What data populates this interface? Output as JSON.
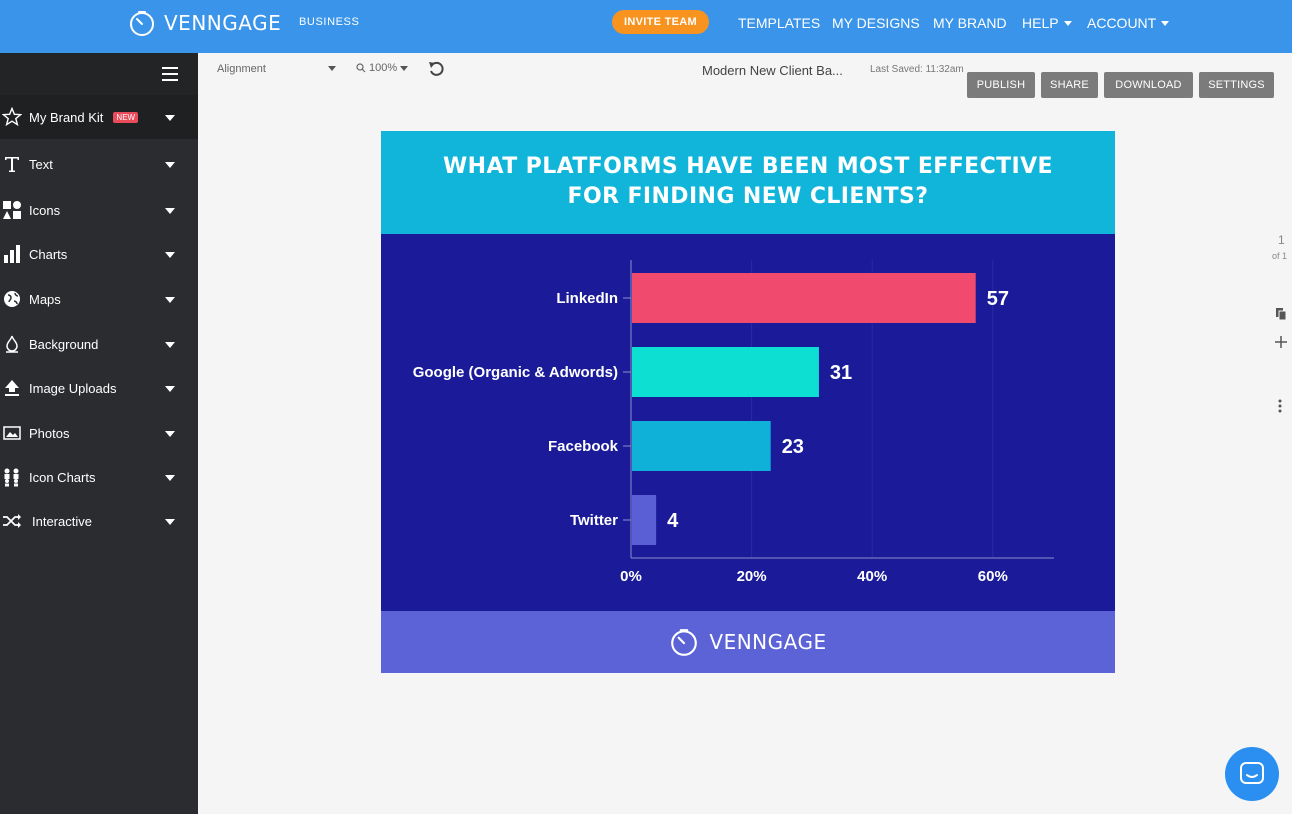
{
  "header": {
    "logo_text": "VENNGAGE",
    "plan": "BUSINESS",
    "invite_label": "INVITE TEAM",
    "nav": [
      {
        "label": "TEMPLATES"
      },
      {
        "label": "MY DESIGNS"
      },
      {
        "label": "MY BRAND"
      },
      {
        "label": "HELP"
      },
      {
        "label": "ACCOUNT"
      }
    ]
  },
  "sidebar": {
    "items": [
      {
        "label": "My Brand Kit",
        "badge": "NEW",
        "icon": "star-icon"
      },
      {
        "label": "Text",
        "icon": "text-icon"
      },
      {
        "label": "Icons",
        "icon": "shapes-icon"
      },
      {
        "label": "Charts",
        "icon": "bar-chart-icon"
      },
      {
        "label": "Maps",
        "icon": "globe-icon"
      },
      {
        "label": "Background",
        "icon": "paint-bucket-icon"
      },
      {
        "label": "Image Uploads",
        "icon": "upload-icon"
      },
      {
        "label": "Photos",
        "icon": "photo-icon"
      },
      {
        "label": "Icon Charts",
        "icon": "people-icon"
      },
      {
        "label": "Interactive",
        "icon": "shuffle-icon"
      }
    ]
  },
  "toolbar": {
    "alignment": "Alignment",
    "zoom": "100%",
    "doc_title": "Modern New Client Ba...",
    "last_saved": "Last Saved: 11:32am",
    "buttons": [
      "PUBLISH",
      "SHARE",
      "DOWNLOAD",
      "SETTINGS"
    ]
  },
  "canvas": {
    "title_line1": "WHAT PLATFORMS HAVE BEEN MOST EFFECTIVE",
    "title_line2": "FOR FINDING NEW CLIENTS?",
    "footer_logo": "VENNGAGE"
  },
  "chart_data": {
    "type": "bar",
    "orientation": "horizontal",
    "categories": [
      "LinkedIn",
      "Google (Organic & Adwords)",
      "Facebook",
      "Twitter"
    ],
    "values": [
      57,
      31,
      23,
      4
    ],
    "data_labels": [
      "57",
      "31",
      "23",
      "4"
    ],
    "bar_colors": [
      "#f04b6e",
      "#0ddfd2",
      "#10b1d8",
      "#5a5fd6"
    ],
    "xlim": [
      0,
      70
    ],
    "x_ticks": [
      0,
      20,
      40,
      60
    ],
    "x_tick_labels": [
      "0%",
      "20%",
      "40%",
      "60%"
    ],
    "grid": true
  },
  "rail": {
    "page_num": "1",
    "page_of": "of 1"
  },
  "colors": {
    "topbar": "#3a95ea",
    "accent": "#f7931e",
    "sidebar": "#2a2c2f",
    "chart_bg": "#1b1b9a",
    "header_bg": "#12b5da",
    "footer_bg": "#5b63d6"
  }
}
